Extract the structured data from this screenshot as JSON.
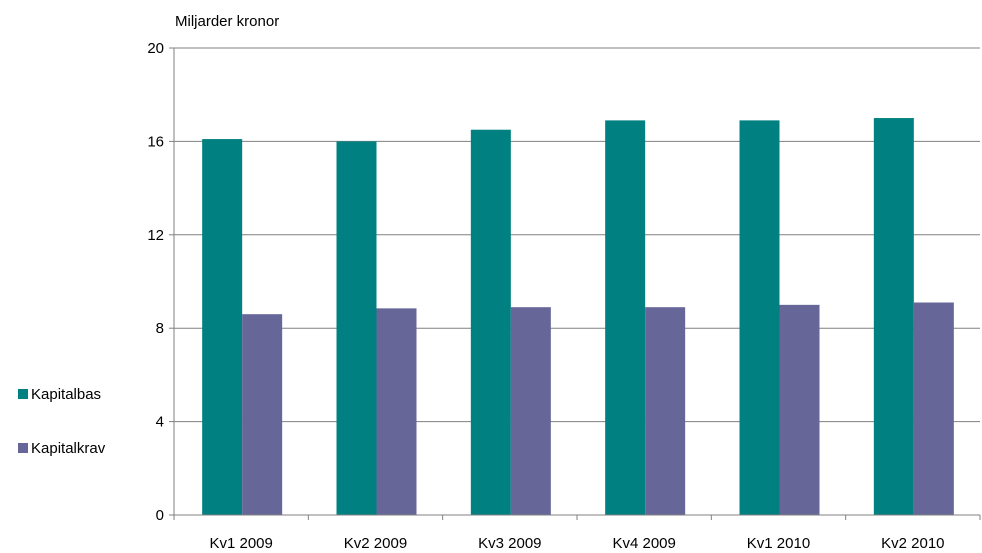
{
  "chart_data": {
    "type": "bar",
    "ylabel": "Miljarder kronor",
    "categories": [
      "Kv1 2009",
      "Kv2 2009",
      "Kv3 2009",
      "Kv4 2009",
      "Kv1 2010",
      "Kv2 2010"
    ],
    "series": [
      {
        "name": "Kapitalbas",
        "values": [
          16.1,
          16.0,
          16.5,
          16.9,
          16.9,
          17.0
        ],
        "color": "#008080"
      },
      {
        "name": "Kapitalkrav",
        "values": [
          8.6,
          8.85,
          8.9,
          8.9,
          9.0,
          9.1
        ],
        "color": "#666699"
      }
    ],
    "ylim": [
      0,
      20
    ],
    "yticks": [
      "0",
      "4",
      "8",
      "12",
      "16",
      "20"
    ],
    "grid": true,
    "legend": "left"
  }
}
